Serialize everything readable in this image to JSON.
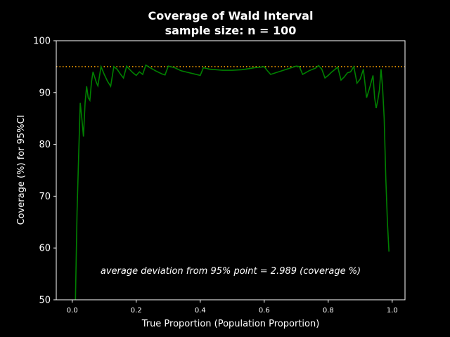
{
  "chart_data": {
    "type": "line",
    "title": "Coverage of Wald Interval",
    "subtitle": "sample size: n = 100",
    "xlabel": "True Proportion (Population Proportion)",
    "ylabel": "Coverage (%) for 95%CI",
    "xlim": [
      -0.05,
      1.04
    ],
    "ylim": [
      50,
      100
    ],
    "xticks": [
      "0.0",
      "0.2",
      "0.4",
      "0.6",
      "0.8",
      "1.0"
    ],
    "yticks": [
      "50",
      "60",
      "70",
      "80",
      "90",
      "100"
    ],
    "grid": false,
    "reference_line": {
      "y": 95,
      "color": "#ffa500",
      "style": "dotted"
    },
    "annotation": "average deviation from 95% point =  2.989 (coverage %)",
    "series": [
      {
        "color": "#008000",
        "x": [
          0.01,
          0.015,
          0.02,
          0.025,
          0.03,
          0.035,
          0.04,
          0.045,
          0.05,
          0.055,
          0.06,
          0.065,
          0.07,
          0.075,
          0.08,
          0.09,
          0.1,
          0.11,
          0.12,
          0.13,
          0.14,
          0.15,
          0.16,
          0.17,
          0.18,
          0.19,
          0.2,
          0.21,
          0.22,
          0.23,
          0.24,
          0.26,
          0.28,
          0.29,
          0.3,
          0.32,
          0.34,
          0.36,
          0.38,
          0.4,
          0.41,
          0.43,
          0.45,
          0.47,
          0.5,
          0.53,
          0.55,
          0.57,
          0.59,
          0.6,
          0.61,
          0.62,
          0.64,
          0.66,
          0.68,
          0.7,
          0.71,
          0.72,
          0.74,
          0.76,
          0.77,
          0.78,
          0.79,
          0.8,
          0.81,
          0.82,
          0.83,
          0.84,
          0.85,
          0.86,
          0.87,
          0.88,
          0.89,
          0.9,
          0.91,
          0.92,
          0.93,
          0.94,
          0.945,
          0.95,
          0.955,
          0.96,
          0.965,
          0.97,
          0.975,
          0.98,
          0.985,
          0.99
        ],
        "values": [
          50,
          67,
          78,
          88,
          85,
          81.5,
          88,
          91.2,
          89,
          88.5,
          92,
          94,
          93,
          92,
          91.3,
          95,
          93.5,
          92.2,
          91.2,
          95,
          94.5,
          93.6,
          92.8,
          95.1,
          94.4,
          93.8,
          93.3,
          94,
          93.5,
          95.3,
          94.9,
          94.2,
          93.6,
          93.4,
          95.1,
          94.8,
          94.2,
          93.9,
          93.6,
          93.3,
          94.8,
          94.5,
          94.4,
          94.3,
          94.3,
          94.4,
          94.6,
          94.8,
          94.9,
          95,
          94.2,
          93.5,
          93.9,
          94.3,
          94.7,
          95.1,
          95,
          93.5,
          94.2,
          94.7,
          95.2,
          94.5,
          92.8,
          93.3,
          93.9,
          94.4,
          94.9,
          92.4,
          93.0,
          93.8,
          94.0,
          95.0,
          91.8,
          92.6,
          94.5,
          89.0,
          91.0,
          93.3,
          89.0,
          87.0,
          88.5,
          90.5,
          94.5,
          91.0,
          85.0,
          73.5,
          65.0,
          59.3
        ]
      }
    ]
  }
}
